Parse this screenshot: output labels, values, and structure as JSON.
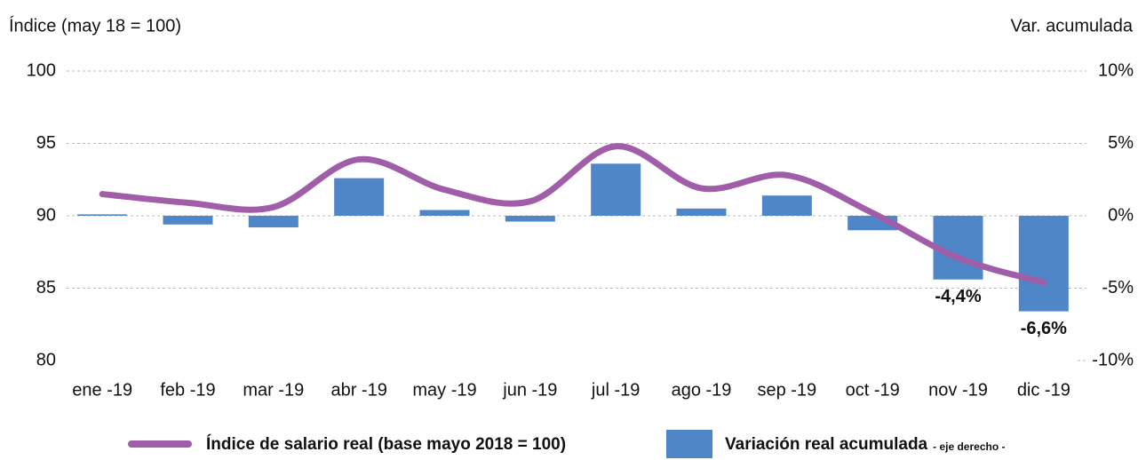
{
  "chart_data": {
    "type": "bar_line",
    "ylabel": "Índice (may 18 = 100)",
    "y2label": "Var. acumulada",
    "categories": [
      "ene -19",
      "feb -19",
      "mar -19",
      "abr -19",
      "may -19",
      "jun -19",
      "jul -19",
      "ago -19",
      "sep -19",
      "oct -19",
      "nov -19",
      "dic -19"
    ],
    "series": [
      {
        "name": "Índice de salario real (base mayo 2018 = 100)",
        "type": "line",
        "color": "#a15ea8",
        "axis": "y",
        "values": [
          91.5,
          90.9,
          90.6,
          93.9,
          91.8,
          91.0,
          94.8,
          91.9,
          92.8,
          90.2,
          87.1,
          85.4
        ]
      },
      {
        "name": "Variación real acumulada",
        "axis_note": "- eje derecho -",
        "type": "bar",
        "color": "#4f86c8",
        "axis": "y2",
        "values": [
          0.1,
          -0.6,
          -0.8,
          2.6,
          0.4,
          -0.4,
          3.6,
          0.5,
          1.4,
          -1.0,
          -4.4,
          -6.6
        ],
        "value_labels": [
          null,
          null,
          null,
          null,
          null,
          null,
          null,
          null,
          null,
          null,
          "-4,4%",
          "-6,6%"
        ]
      }
    ],
    "ylim": [
      80,
      100
    ],
    "yticks": [
      80,
      85,
      90,
      95,
      100
    ],
    "y2lim": [
      -10,
      10
    ],
    "y2ticks": [
      {
        "value": -10,
        "label": "-10%"
      },
      {
        "value": -5,
        "label": "-5%"
      },
      {
        "value": 0,
        "label": "0%"
      },
      {
        "value": 5,
        "label": "5%"
      },
      {
        "value": 10,
        "label": "10%"
      }
    ],
    "grid": true
  }
}
